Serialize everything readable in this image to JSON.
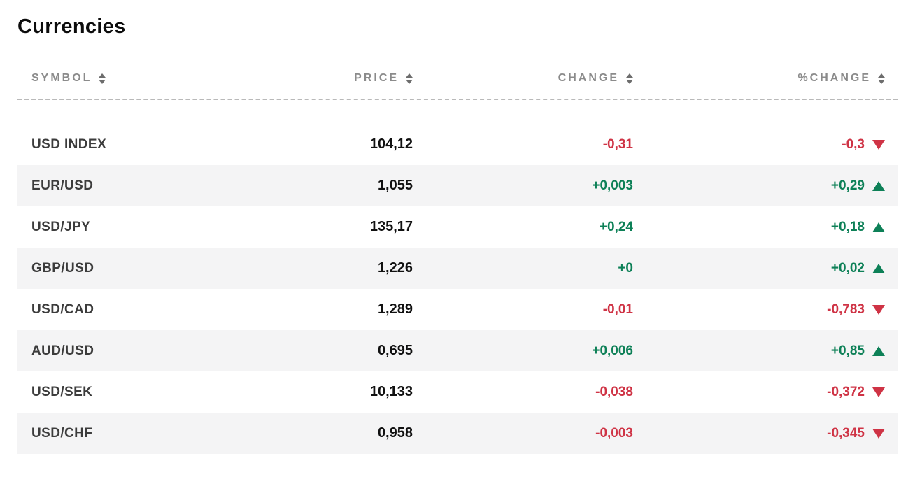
{
  "page": {
    "title": "Currencies"
  },
  "table": {
    "columns": [
      {
        "key": "symbol",
        "label": "SYMBOL"
      },
      {
        "key": "price",
        "label": "PRICE"
      },
      {
        "key": "change",
        "label": "CHANGE"
      },
      {
        "key": "pct-change",
        "label": "%CHANGE"
      }
    ],
    "rows": [
      {
        "symbol": "USD INDEX",
        "price": "104,12",
        "change": "-0,31",
        "pct_change": "-0,3",
        "direction": "down"
      },
      {
        "symbol": "EUR/USD",
        "price": "1,055",
        "change": "+0,003",
        "pct_change": "+0,29",
        "direction": "up"
      },
      {
        "symbol": "USD/JPY",
        "price": "135,17",
        "change": "+0,24",
        "pct_change": "+0,18",
        "direction": "up"
      },
      {
        "symbol": "GBP/USD",
        "price": "1,226",
        "change": "+0",
        "pct_change": "+0,02",
        "direction": "up"
      },
      {
        "symbol": "USD/CAD",
        "price": "1,289",
        "change": "-0,01",
        "pct_change": "-0,783",
        "direction": "down"
      },
      {
        "symbol": "AUD/USD",
        "price": "0,695",
        "change": "+0,006",
        "pct_change": "+0,85",
        "direction": "up"
      },
      {
        "symbol": "USD/SEK",
        "price": "10,133",
        "change": "-0,038",
        "pct_change": "-0,372",
        "direction": "down"
      },
      {
        "symbol": "USD/CHF",
        "price": "0,958",
        "change": "-0,003",
        "pct_change": "-0,345",
        "direction": "down"
      }
    ]
  },
  "colors": {
    "positive": "#0d8057",
    "negative": "#cf3345"
  }
}
